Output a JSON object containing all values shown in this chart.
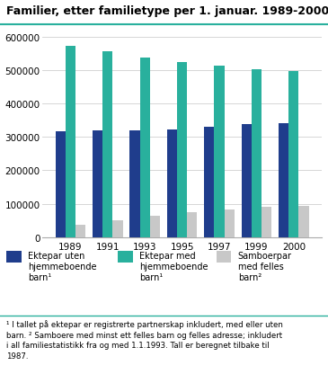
{
  "title": "Familier, etter familietype per 1. januar. 1989-2000",
  "years": [
    1989,
    1991,
    1993,
    1995,
    1997,
    1999,
    2000
  ],
  "series": {
    "ektepar_uten": [
      316000,
      319000,
      320000,
      323000,
      330000,
      337000,
      342000
    ],
    "ektepar_med": [
      572000,
      557000,
      538000,
      524000,
      514000,
      501000,
      496000
    ],
    "samboerpar": [
      37000,
      50000,
      63000,
      74000,
      82000,
      92000,
      94000
    ]
  },
  "colors": {
    "ektepar_uten": "#1f3d8c",
    "ektepar_med": "#29b09d",
    "samboerpar": "#c8c8c8"
  },
  "ylim": [
    0,
    620000
  ],
  "yticks": [
    0,
    100000,
    200000,
    300000,
    400000,
    500000,
    600000
  ],
  "legend": [
    {
      "label": "Ektepar uten\nhjemmeboende\nbarn¹",
      "color": "#1f3d8c"
    },
    {
      "label": "Ektepar med\nhjemmeboende\nbarn¹",
      "color": "#29b09d"
    },
    {
      "label": "Samboerpar\nmed felles\nbarn²",
      "color": "#c8c8c8"
    }
  ],
  "footnote": "¹ I tallet på ektepar er registrerte partnerskap inkludert, med eller uten\nbarn. ² Samboere med minst ett felles barn og felles adresse; inkludert\ni all familiestatistikk fra og med 1.1.1993. Tall er beregnet tilbake til\n1987.",
  "title_color": "#000000",
  "background_color": "#ffffff",
  "grid_color": "#d0d0d0",
  "teal_line_color": "#29b09d"
}
